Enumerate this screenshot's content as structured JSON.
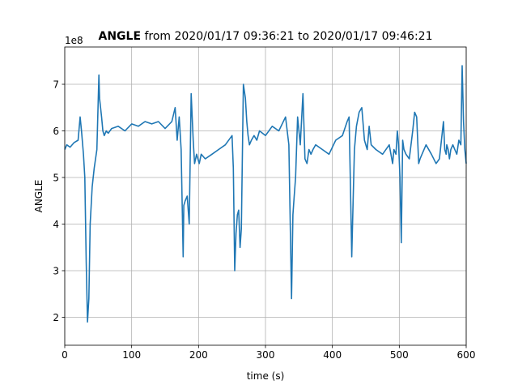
{
  "chart_data": {
    "type": "line",
    "title_bold": "ANGLE",
    "title_rest": " from 2020/01/17 09:36:21 to 2020/01/17 09:46:21",
    "xlabel": "time (s)",
    "ylabel": "ANGLE",
    "offset_label": "1e8",
    "xlim": [
      0,
      600
    ],
    "ylim": [
      1.4,
      7.8
    ],
    "y_scale_factor": 100000000,
    "xticks": [
      0,
      100,
      200,
      300,
      400,
      500,
      600
    ],
    "yticks": [
      2,
      3,
      4,
      5,
      6,
      7
    ],
    "grid": true,
    "color": "#1f77b4",
    "series": [
      {
        "x": [
          0,
          3,
          8,
          14,
          20,
          23,
          25,
          28,
          30,
          32,
          34,
          36,
          38,
          41,
          44,
          48,
          51,
          52,
          55,
          57,
          59,
          62,
          65,
          70,
          80,
          90,
          100,
          110,
          120,
          130,
          140,
          150,
          160,
          165,
          168,
          171,
          174,
          177,
          178,
          180,
          183,
          186,
          189,
          192,
          194,
          197,
          199,
          201,
          204,
          210,
          220,
          230,
          240,
          250,
          252,
          254,
          256,
          258,
          260,
          262,
          264,
          267,
          270,
          272,
          274,
          276,
          279,
          283,
          287,
          291,
          300,
          310,
          320,
          330,
          335,
          337,
          339,
          341,
          343,
          345,
          348,
          352,
          356,
          359,
          362,
          365,
          368,
          371,
          375,
          385,
          395,
          405,
          415,
          422,
          425,
          427,
          429,
          431,
          433,
          436,
          440,
          444,
          448,
          452,
          455,
          458,
          465,
          475,
          485,
          490,
          492,
          495,
          497,
          499,
          501,
          503,
          505,
          507,
          510,
          515,
          520,
          523,
          526,
          529,
          531,
          534,
          540,
          548,
          555,
          560,
          563,
          566,
          568,
          570,
          571,
          573,
          575,
          577,
          580,
          583,
          586,
          589,
          592,
          594,
          596,
          598,
          600
        ],
        "y": [
          5.6,
          5.7,
          5.65,
          5.75,
          5.8,
          6.3,
          6.0,
          5.5,
          5.0,
          3.2,
          1.9,
          2.4,
          4.0,
          4.8,
          5.2,
          5.6,
          7.2,
          6.7,
          6.3,
          6.0,
          5.9,
          6.0,
          5.95,
          6.05,
          6.1,
          6.0,
          6.15,
          6.1,
          6.2,
          6.15,
          6.2,
          6.05,
          6.2,
          6.5,
          5.8,
          6.3,
          5.6,
          3.3,
          4.4,
          4.5,
          4.6,
          4.0,
          6.8,
          5.8,
          5.3,
          5.5,
          5.4,
          5.3,
          5.5,
          5.4,
          5.5,
          5.6,
          5.7,
          5.9,
          5.2,
          3.0,
          3.8,
          4.2,
          4.3,
          3.5,
          3.9,
          7.0,
          6.7,
          6.2,
          5.9,
          5.7,
          5.8,
          5.9,
          5.8,
          6.0,
          5.9,
          6.1,
          6.0,
          6.3,
          5.7,
          4.0,
          2.4,
          4.2,
          4.6,
          5.0,
          6.3,
          5.7,
          6.8,
          5.4,
          5.3,
          5.6,
          5.5,
          5.6,
          5.7,
          5.6,
          5.5,
          5.8,
          5.9,
          6.2,
          6.3,
          4.8,
          3.3,
          4.5,
          5.6,
          6.1,
          6.4,
          6.5,
          5.8,
          5.6,
          6.1,
          5.7,
          5.6,
          5.5,
          5.7,
          5.3,
          5.6,
          5.5,
          6.0,
          5.7,
          5.0,
          3.6,
          5.8,
          5.6,
          5.5,
          5.4,
          6.0,
          6.4,
          6.3,
          5.3,
          5.4,
          5.5,
          5.7,
          5.5,
          5.3,
          5.4,
          5.8,
          6.2,
          5.6,
          5.5,
          5.7,
          5.6,
          5.4,
          5.6,
          5.7,
          5.6,
          5.5,
          5.8,
          5.7,
          7.4,
          6.2,
          5.6,
          5.3
        ]
      }
    ]
  }
}
